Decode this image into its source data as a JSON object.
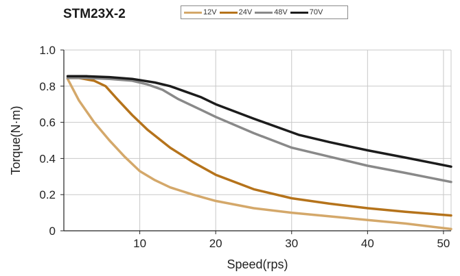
{
  "chart_data": {
    "type": "line",
    "title": "STM23X-2",
    "xlabel": "Speed(rps)",
    "ylabel": "Torque(N·m)",
    "xlim": [
      0,
      51
    ],
    "ylim": [
      0,
      1.0
    ],
    "x_ticks": [
      "10",
      "20",
      "30",
      "40",
      "50"
    ],
    "y_ticks": [
      "0",
      "0.2",
      "0.4",
      "0.6",
      "0.8",
      "1.0"
    ],
    "grid": true,
    "legend_position": "top",
    "series": [
      {
        "name": "12V",
        "color": "#d4a86a",
        "x": [
          0.5,
          2,
          4,
          6,
          8,
          10,
          12,
          14,
          17,
          20,
          25,
          30,
          35,
          40,
          45,
          51
        ],
        "y": [
          0.84,
          0.72,
          0.6,
          0.5,
          0.41,
          0.33,
          0.28,
          0.24,
          0.2,
          0.165,
          0.125,
          0.1,
          0.08,
          0.06,
          0.04,
          0.01
        ]
      },
      {
        "name": "24V",
        "color": "#b5731b",
        "x": [
          0.5,
          2,
          4,
          5.5,
          7,
          9,
          11,
          14,
          17,
          20,
          25,
          30,
          35,
          40,
          45,
          51
        ],
        "y": [
          0.845,
          0.845,
          0.83,
          0.8,
          0.73,
          0.64,
          0.56,
          0.46,
          0.38,
          0.31,
          0.23,
          0.18,
          0.15,
          0.125,
          0.105,
          0.085
        ]
      },
      {
        "name": "48V",
        "color": "#898989",
        "x": [
          0.5,
          3,
          6,
          9,
          11,
          13,
          15,
          18,
          20,
          25,
          30,
          35,
          40,
          45,
          51
        ],
        "y": [
          0.845,
          0.845,
          0.84,
          0.83,
          0.81,
          0.78,
          0.73,
          0.67,
          0.63,
          0.54,
          0.46,
          0.41,
          0.36,
          0.32,
          0.27
        ]
      },
      {
        "name": "70V",
        "color": "#1c1c1c",
        "x": [
          0.5,
          3,
          6,
          9,
          12,
          14,
          16,
          18,
          20,
          25,
          30,
          31,
          35,
          40,
          45,
          51
        ],
        "y": [
          0.855,
          0.855,
          0.85,
          0.84,
          0.82,
          0.8,
          0.77,
          0.74,
          0.7,
          0.62,
          0.545,
          0.53,
          0.49,
          0.445,
          0.405,
          0.355
        ]
      }
    ]
  }
}
